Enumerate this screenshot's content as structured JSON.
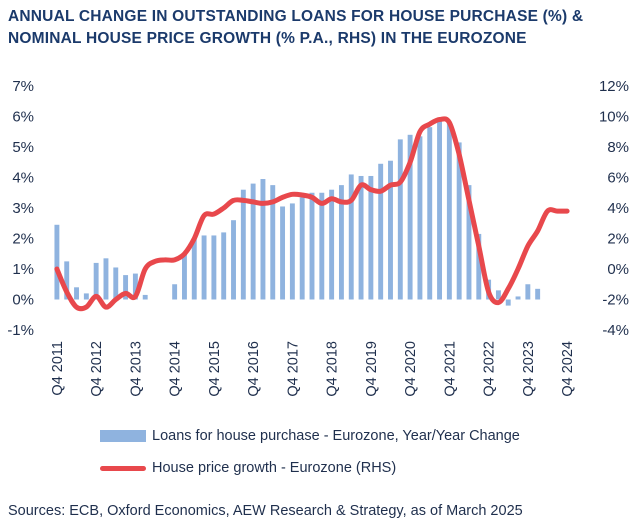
{
  "title_lines": [
    "ANNUAL CHANGE IN OUTSTANDING LOANS FOR HOUSE PURCHASE (%) &",
    "NOMINAL HOUSE PRICE GROWTH (% P.A., RHS) IN THE EUROZONE"
  ],
  "source": "Sources: ECB, Oxford Economics, AEW Research & Strategy, as of March 2025",
  "colors": {
    "bars": "#8fb3df",
    "line": "#e8484c",
    "text": "#1f2f4d",
    "title": "#1b3a6b"
  },
  "chart_data": {
    "type": "bar",
    "title": "ANNUAL CHANGE IN OUTSTANDING LOANS FOR HOUSE PURCHASE (%) & NOMINAL HOUSE PRICE GROWTH (% P.A., RHS) IN THE EUROZONE",
    "x_tick_labels": [
      "Q4 2011",
      "Q4 2012",
      "Q4 2013",
      "Q4 2014",
      "Q4 2015",
      "Q4 2016",
      "Q4 2017",
      "Q4 2018",
      "Q4 2019",
      "Q4 2020",
      "Q4 2021",
      "Q4 2022",
      "Q4 2023",
      "Q4 2024"
    ],
    "quarters": [
      "Q4 2011",
      "Q1 2012",
      "Q2 2012",
      "Q3 2012",
      "Q4 2012",
      "Q1 2013",
      "Q2 2013",
      "Q3 2013",
      "Q4 2013",
      "Q1 2014",
      "Q2 2014",
      "Q3 2014",
      "Q4 2014",
      "Q1 2015",
      "Q2 2015",
      "Q3 2015",
      "Q4 2015",
      "Q1 2016",
      "Q2 2016",
      "Q3 2016",
      "Q4 2016",
      "Q1 2017",
      "Q2 2017",
      "Q3 2017",
      "Q4 2017",
      "Q1 2018",
      "Q2 2018",
      "Q3 2018",
      "Q4 2018",
      "Q1 2019",
      "Q2 2019",
      "Q3 2019",
      "Q4 2019",
      "Q1 2020",
      "Q2 2020",
      "Q3 2020",
      "Q4 2020",
      "Q1 2021",
      "Q2 2021",
      "Q3 2021",
      "Q4 2021",
      "Q1 2022",
      "Q2 2022",
      "Q3 2022",
      "Q4 2022",
      "Q1 2023",
      "Q2 2023",
      "Q3 2023",
      "Q4 2023",
      "Q1 2024",
      "Q2 2024",
      "Q3 2024",
      "Q4 2024"
    ],
    "y_left": {
      "min": -1,
      "max": 7,
      "step": 1,
      "tick_labels": [
        "-1%",
        "0%",
        "1%",
        "2%",
        "3%",
        "4%",
        "5%",
        "6%",
        "7%"
      ]
    },
    "y_right": {
      "min": -4,
      "max": 12,
      "step": 2,
      "tick_labels": [
        "-4%",
        "-2%",
        "0%",
        "2%",
        "4%",
        "6%",
        "8%",
        "10%",
        "12%"
      ]
    },
    "series": [
      {
        "name": "Loans for house purchase - Eurozone, Year/Year Change",
        "type": "bar",
        "axis": "left",
        "values": [
          2.45,
          1.25,
          0.4,
          0.2,
          1.2,
          1.35,
          1.05,
          0.8,
          0.85,
          0.15,
          0.0,
          0.0,
          0.5,
          1.5,
          2.0,
          2.1,
          2.1,
          2.2,
          2.6,
          3.6,
          3.8,
          3.95,
          3.75,
          3.05,
          3.15,
          3.35,
          3.5,
          3.5,
          3.6,
          3.75,
          4.1,
          4.05,
          4.05,
          4.45,
          4.55,
          5.25,
          5.4,
          5.35,
          5.65,
          5.85,
          5.8,
          5.15,
          3.75,
          2.15,
          0.65,
          0.3,
          -0.2,
          0.1,
          0.5,
          0.35,
          0.0,
          0.0,
          0.0
        ]
      },
      {
        "name": "House price growth - Eurozone (RHS)",
        "type": "line",
        "axis": "right",
        "values": [
          0.0,
          -1.5,
          -2.5,
          -2.5,
          -1.8,
          -2.5,
          -2.0,
          -1.6,
          -1.8,
          0.0,
          0.5,
          0.6,
          0.6,
          1.0,
          2.0,
          3.5,
          3.6,
          4.0,
          4.5,
          4.5,
          4.4,
          4.3,
          4.4,
          4.7,
          4.9,
          4.85,
          4.7,
          4.3,
          4.6,
          4.4,
          4.5,
          5.5,
          5.2,
          5.1,
          5.5,
          5.7,
          7.0,
          9.0,
          9.5,
          9.8,
          9.6,
          7.5,
          4.5,
          1.5,
          -1.5,
          -2.2,
          -1.3,
          0.0,
          1.5,
          2.5,
          3.8,
          3.8,
          3.8
        ]
      }
    ],
    "legend": [
      "Loans for house purchase - Eurozone, Year/Year Change",
      "House price growth - Eurozone (RHS)"
    ],
    "legend_position": "bottom",
    "grid": false
  }
}
